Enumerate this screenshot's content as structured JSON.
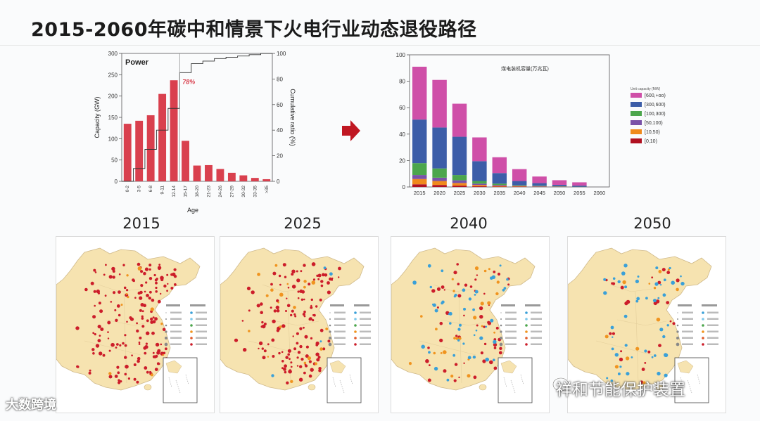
{
  "slide": {
    "title": "2015-2060年碳中和情景下火电行业动态退役路径"
  },
  "colors": {
    "bar_red": "#d9404e",
    "map_land": "#f6e3b0",
    "dot_red": "#cc1d2a",
    "dot_orange": "#f0941f",
    "dot_blue": "#3aa0d8",
    "arrow": "#c01722"
  },
  "chart_data": [
    {
      "type": "bar",
      "title": "Power",
      "xlabel": "Age",
      "ylabel": "Capacity (GW)",
      "y2label": "Cumulative ratio (%)",
      "ylim": [
        0,
        300
      ],
      "y2lim": [
        0,
        100
      ],
      "yticks": [
        "0",
        "50",
        "100",
        "150",
        "200",
        "250",
        "300"
      ],
      "y2ticks": [
        "0",
        "20",
        "40",
        "60",
        "80",
        "100"
      ],
      "categories": [
        "0-2",
        "3-5",
        "6-8",
        "9-11",
        "12-14",
        "15-17",
        "18-20",
        "21-23",
        "24-26",
        "27-29",
        "30-32",
        "33-35",
        ">35"
      ],
      "values": [
        135,
        142,
        155,
        205,
        237,
        95,
        37,
        38,
        29,
        20,
        14,
        8,
        5
      ],
      "cumulative_line": [
        0,
        10,
        25,
        40,
        57,
        85,
        92,
        94,
        96,
        97,
        98,
        99,
        100
      ],
      "annotation": "78%",
      "grid": false
    },
    {
      "type": "bar",
      "stacked": true,
      "title": "煤电装机容量(万兆瓦)",
      "legend_title": "Unit capacity (MW)",
      "legend_position": "right",
      "ylim": [
        0,
        100
      ],
      "yticks": [
        "0",
        "20",
        "40",
        "60",
        "80",
        "100"
      ],
      "categories": [
        "2015",
        "2020",
        "2025",
        "2030",
        "2035",
        "2040",
        "2045",
        "2050",
        "2055",
        "2060"
      ],
      "series": [
        {
          "name": "[0,10)",
          "color": "#b01020",
          "values": [
            2,
            1.5,
            1,
            0.5,
            0.3,
            0.2,
            0.1,
            0.1,
            0,
            0
          ]
        },
        {
          "name": "[10,50)",
          "color": "#f08a1c",
          "values": [
            4,
            3,
            2,
            1,
            0.5,
            0.3,
            0.2,
            0.1,
            0,
            0
          ]
        },
        {
          "name": "[50,100)",
          "color": "#7a52a8",
          "values": [
            3,
            2.5,
            2,
            1,
            0.7,
            0.5,
            0.3,
            0.2,
            0.1,
            0
          ]
        },
        {
          "name": "[100,300)",
          "color": "#4ca64c",
          "values": [
            9,
            7,
            4,
            2,
            1,
            0.5,
            0.3,
            0.2,
            0.1,
            0
          ]
        },
        {
          "name": "[300,600)",
          "color": "#3c5da8",
          "values": [
            33,
            31,
            29,
            15,
            8,
            3,
            2,
            1,
            0.8,
            0
          ]
        },
        {
          "name": "[600,+oo)",
          "color": "#cf4fa8",
          "values": [
            40,
            36,
            25,
            18,
            12,
            9,
            5,
            3.5,
            2.5,
            0
          ]
        }
      ],
      "grid": false
    }
  ],
  "maps": [
    {
      "year": "2015",
      "mix": {
        "red": 170,
        "orange": 10,
        "blue": 0
      }
    },
    {
      "year": "2025",
      "mix": {
        "red": 140,
        "orange": 20,
        "blue": 4
      }
    },
    {
      "year": "2040",
      "mix": {
        "red": 55,
        "orange": 25,
        "blue": 45
      }
    },
    {
      "year": "2050",
      "mix": {
        "red": 25,
        "orange": 12,
        "blue": 45
      }
    }
  ],
  "watermarks": {
    "left": "大数跨境",
    "right": "祥和节能保护装置"
  }
}
